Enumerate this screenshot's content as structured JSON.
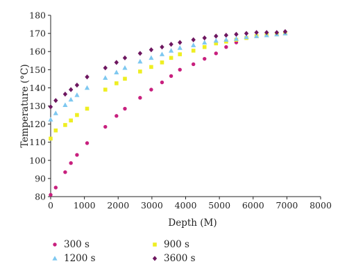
{
  "chart_data": {
    "type": "scatter",
    "title": "",
    "xlabel": "Depth (M)",
    "ylabel": "Temperature (°C)",
    "xlim": [
      0,
      8000
    ],
    "ylim": [
      80,
      180
    ],
    "xticks": [
      0,
      1000,
      2000,
      3000,
      4000,
      5000,
      6000,
      7000,
      8000
    ],
    "yticks": [
      80,
      90,
      100,
      110,
      120,
      130,
      140,
      150,
      160,
      170,
      180
    ],
    "grid": false,
    "legend": "bottom",
    "series": [
      {
        "name": "300 s",
        "marker": "circle",
        "color": "#c8207e",
        "x": [
          0,
          150,
          430,
          600,
          780,
          1080,
          1620,
          1950,
          2200,
          2650,
          2980,
          3300,
          3570,
          3830,
          4230,
          4560,
          4900,
          5200,
          5500,
          5800,
          6100,
          6400,
          6700,
          6950
        ],
        "y": [
          81,
          85,
          93.5,
          98.5,
          103,
          109.5,
          118.5,
          124.5,
          128.5,
          134.5,
          139,
          143,
          146.5,
          150,
          153,
          156,
          159,
          162.5,
          165,
          167.5,
          168.5,
          169.5,
          170,
          170.5
        ]
      },
      {
        "name": "900 s",
        "marker": "square",
        "color": "#eeee22",
        "x": [
          0,
          150,
          430,
          600,
          780,
          1080,
          1620,
          1950,
          2200,
          2650,
          2980,
          3300,
          3570,
          3830,
          4230,
          4560,
          4900,
          5200,
          5500,
          5800,
          6100,
          6400,
          6700,
          6950
        ],
        "y": [
          112,
          116.5,
          119.5,
          122,
          125,
          128.5,
          139,
          142.5,
          145,
          149,
          151.5,
          154,
          156.5,
          158.5,
          160.5,
          162.5,
          164.5,
          165.5,
          166.5,
          167.5,
          168.5,
          169,
          169.5,
          170
        ]
      },
      {
        "name": "1200 s",
        "marker": "triangle",
        "color": "#7ec8f0",
        "x": [
          0,
          150,
          430,
          600,
          780,
          1080,
          1620,
          1950,
          2200,
          2650,
          2980,
          3300,
          3570,
          3830,
          4230,
          4560,
          4900,
          5200,
          5500,
          5800,
          6100,
          6400,
          6700,
          6950
        ],
        "y": [
          122.5,
          126,
          130.5,
          133.5,
          136,
          140,
          145.5,
          148.5,
          151,
          154.5,
          156.5,
          158.5,
          160.5,
          162,
          163.5,
          165,
          166,
          166.5,
          167,
          168,
          168.5,
          169,
          169.5,
          170
        ]
      },
      {
        "name": "3600 s",
        "marker": "diamond",
        "color": "#6e1760",
        "x": [
          0,
          150,
          430,
          600,
          780,
          1080,
          1620,
          1950,
          2200,
          2650,
          2980,
          3300,
          3570,
          3830,
          4230,
          4560,
          4900,
          5200,
          5500,
          5800,
          6100,
          6400,
          6700,
          6950
        ],
        "y": [
          129.5,
          133,
          136.5,
          139,
          141.5,
          146,
          151,
          154,
          156.5,
          159,
          161,
          162.5,
          164,
          165,
          166.5,
          167.5,
          168.5,
          169,
          169.5,
          170,
          170.5,
          170.5,
          170.5,
          171
        ]
      }
    ],
    "legend_order": [
      0,
      1,
      2,
      3
    ]
  }
}
